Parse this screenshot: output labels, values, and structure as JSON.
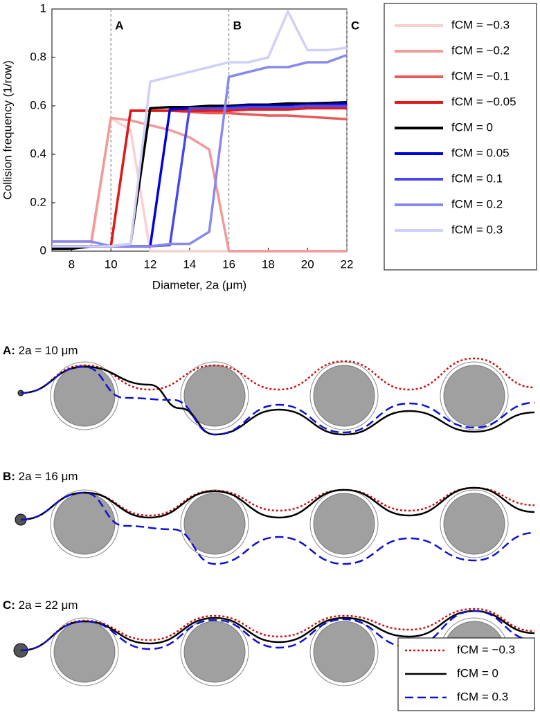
{
  "chart_data": {
    "type": "line",
    "x_label": "Diameter, 2a (μm)",
    "y_label": "Collision frequency (1/row)",
    "x": [
      7,
      8,
      9,
      10,
      11,
      12,
      13,
      14,
      15,
      16,
      17,
      18,
      19,
      20,
      21,
      22
    ],
    "xlim": [
      7,
      22
    ],
    "xticks": [
      8,
      10,
      12,
      14,
      16,
      18,
      20,
      22
    ],
    "ylim": [
      0,
      1
    ],
    "yticks": [
      0,
      0.2,
      0.4,
      0.6,
      0.8,
      1
    ],
    "legend": "outside-right",
    "annotations": [
      {
        "x": 10,
        "label": "A"
      },
      {
        "x": 16,
        "label": "B"
      },
      {
        "x": 22,
        "label": "C"
      }
    ],
    "series": [
      {
        "name": "fCM = −0.3",
        "color": "#f8d0d0",
        "values": [
          0.02,
          0.02,
          0.02,
          0.55,
          0.5,
          0,
          0,
          0,
          0,
          0,
          0,
          0,
          0,
          0,
          0,
          0
        ]
      },
      {
        "name": "fCM = −0.2",
        "color": "#f09a9a",
        "values": [
          0.04,
          0.04,
          0.04,
          0.55,
          0.54,
          0.52,
          0.5,
          0.47,
          0.42,
          0,
          0,
          0,
          0,
          0,
          0,
          0
        ]
      },
      {
        "name": "fCM = −0.1",
        "color": "#ea5858",
        "values": [
          0.02,
          0.02,
          0.02,
          0.02,
          0.58,
          0.58,
          0.58,
          0.575,
          0.57,
          0.57,
          0.565,
          0.56,
          0.56,
          0.555,
          0.55,
          0.545
        ]
      },
      {
        "name": "fCM = −0.05",
        "color": "#e01818",
        "values": [
          0.02,
          0.02,
          0.02,
          0.02,
          0.58,
          0.58,
          0.58,
          0.58,
          0.58,
          0.58,
          0.585,
          0.585,
          0.585,
          0.59,
          0.59,
          0.59
        ]
      },
      {
        "name": "fCM = 0",
        "color": "#000000",
        "values": [
          0.01,
          0.01,
          0.02,
          0.02,
          0.03,
          0.59,
          0.595,
          0.595,
          0.6,
          0.6,
          0.605,
          0.605,
          0.61,
          0.61,
          0.612,
          0.615
        ]
      },
      {
        "name": "fCM = 0.05",
        "color": "#0000e0",
        "values": [
          0.02,
          0.02,
          0.02,
          0.02,
          0.02,
          0.02,
          0.585,
          0.59,
          0.59,
          0.595,
          0.6,
          0.6,
          0.6,
          0.605,
          0.605,
          0.61
        ]
      },
      {
        "name": "fCM = 0.1",
        "color": "#4848ea",
        "values": [
          0.02,
          0.02,
          0.02,
          0.02,
          0.02,
          0.02,
          0.025,
          0.59,
          0.59,
          0.59,
          0.595,
          0.595,
          0.595,
          0.6,
          0.6,
          0.6
        ]
      },
      {
        "name": "fCM = 0.2",
        "color": "#8888ee",
        "values": [
          0.04,
          0.04,
          0.04,
          0.02,
          0.02,
          0.02,
          0.03,
          0.03,
          0.08,
          0.72,
          0.74,
          0.76,
          0.76,
          0.78,
          0.78,
          0.81
        ]
      },
      {
        "name": "fCM = 0.3",
        "color": "#d0d0f8",
        "values": [
          0.02,
          0.02,
          0.02,
          0.02,
          0.03,
          0.7,
          0.72,
          0.74,
          0.76,
          0.78,
          0.78,
          0.8,
          0.99,
          0.83,
          0.83,
          0.84
        ]
      }
    ]
  },
  "panels": [
    {
      "label": "A:",
      "text": " 2a = 10 μm"
    },
    {
      "label": "B:",
      "text": " 2a = 16 μm"
    },
    {
      "label": "C:",
      "text": " 2a = 22 μm"
    }
  ],
  "panel_legend": [
    "fCM = −0.3",
    "fCM = 0",
    "fCM = 0.3"
  ]
}
